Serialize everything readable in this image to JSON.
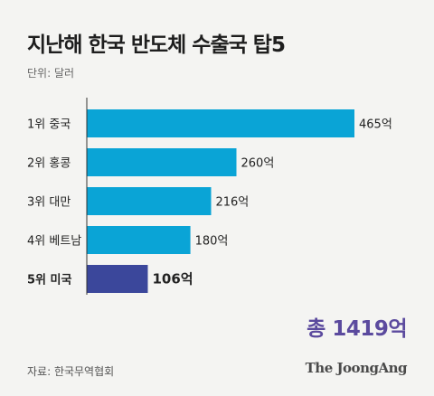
{
  "title": "지난해 한국 반도체 수출국 탑5",
  "unit_label": "단위: 달러",
  "total_label": "총 1419억",
  "source": "자료: 한국무역협회",
  "logo": "The JoongAng",
  "colors": {
    "bar": "#0aa4d6",
    "highlight_bar": "#3b479b",
    "axis": "#333333",
    "total": "#5b4a9e"
  },
  "chart_data": {
    "type": "bar",
    "orientation": "horizontal",
    "categories": [
      "1위 중국",
      "2위 홍콩",
      "3위 대만",
      "4위 베트남",
      "5위 미국"
    ],
    "values": [
      465,
      260,
      216,
      180,
      106
    ],
    "value_labels": [
      "465억",
      "260억",
      "216억",
      "180억",
      "106억"
    ],
    "highlight_index": 4,
    "xlim": [
      0,
      465
    ],
    "grid": false
  }
}
